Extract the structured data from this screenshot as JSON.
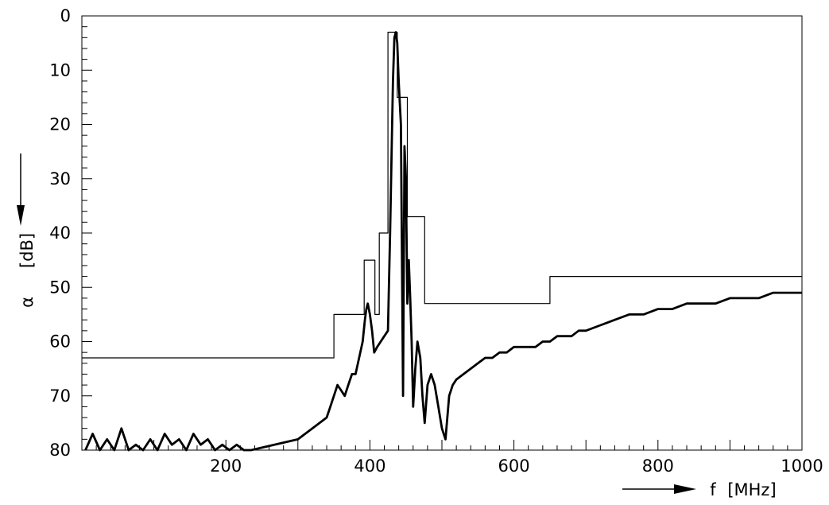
{
  "chart_data": {
    "type": "line",
    "title": "",
    "xlabel": "f",
    "xunit": "[MHz]",
    "ylabel": "α",
    "yunit": "[dB]",
    "xlim": [
      0,
      1000
    ],
    "ylim": [
      0,
      80
    ],
    "y_inverted": true,
    "grid": false,
    "x_ticks": [
      200,
      400,
      600,
      800,
      1000
    ],
    "y_ticks": [
      0,
      10,
      20,
      30,
      40,
      50,
      60,
      70,
      80
    ],
    "series": [
      {
        "style": "thin-step",
        "x": [
          0,
          350,
          350,
          392,
          392,
          407,
          407,
          413,
          413,
          425,
          425,
          438,
          438,
          452,
          452,
          465,
          465,
          476,
          476,
          650,
          650,
          1000
        ],
        "y": [
          63,
          63,
          55,
          55,
          45,
          45,
          55,
          55,
          40,
          40,
          3,
          3,
          15,
          15,
          37,
          37,
          37,
          37,
          53,
          53,
          48,
          48
        ]
      },
      {
        "style": "thick",
        "x": [
          5,
          15,
          25,
          35,
          45,
          55,
          65,
          75,
          85,
          95,
          105,
          115,
          125,
          135,
          145,
          155,
          165,
          175,
          185,
          195,
          205,
          215,
          225,
          235,
          300,
          310,
          320,
          330,
          340,
          345,
          350,
          355,
          360,
          365,
          370,
          375,
          380,
          385,
          390,
          393,
          395,
          397,
          400,
          403,
          406,
          410,
          415,
          420,
          425,
          428,
          432,
          434,
          436,
          438,
          440,
          443,
          446,
          448,
          450,
          452,
          454,
          456,
          458,
          460,
          463,
          466,
          470,
          473,
          476,
          480,
          485,
          490,
          495,
          500,
          505,
          510,
          515,
          520,
          530,
          540,
          550,
          560,
          570,
          580,
          590,
          600,
          610,
          620,
          630,
          640,
          650,
          660,
          670,
          680,
          690,
          700,
          720,
          740,
          760,
          780,
          800,
          820,
          840,
          860,
          880,
          900,
          920,
          940,
          960,
          980,
          1000
        ],
        "y": [
          80,
          77,
          80,
          78,
          80,
          76,
          80,
          79,
          80,
          78,
          80,
          77,
          79,
          78,
          80,
          77,
          79,
          78,
          80,
          79,
          80,
          79,
          80,
          80,
          78,
          77,
          76,
          75,
          74,
          72,
          70,
          68,
          69,
          70,
          68,
          66,
          66,
          63,
          60,
          56,
          54,
          53,
          55,
          58,
          62,
          61,
          60,
          59,
          58,
          40,
          12,
          4,
          3,
          5,
          12,
          20,
          70,
          24,
          30,
          53,
          45,
          52,
          60,
          72,
          65,
          60,
          63,
          70,
          75,
          68,
          66,
          68,
          72,
          76,
          78,
          70,
          68,
          67,
          66,
          65,
          64,
          63,
          63,
          62,
          62,
          61,
          61,
          61,
          61,
          60,
          60,
          59,
          59,
          59,
          58,
          58,
          57,
          56,
          55,
          55,
          54,
          54,
          53,
          53,
          53,
          52,
          52,
          52,
          51,
          51,
          51
        ]
      }
    ]
  }
}
